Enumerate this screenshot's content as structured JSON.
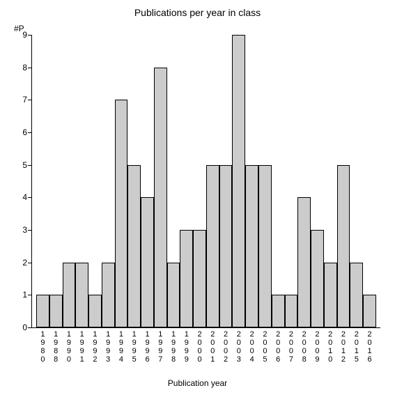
{
  "chart": {
    "type": "bar",
    "title": "Publications per year in class",
    "title_fontsize": 14,
    "y_axis_label": "#P",
    "x_axis_label": "Publication year",
    "label_fontsize": 12,
    "ylim": [
      0,
      9
    ],
    "ytick_step": 1,
    "bar_color": "#cccccc",
    "bar_border_color": "#000000",
    "background_color": "#ffffff",
    "axis_color": "#000000",
    "bar_width": 1.0,
    "categories": [
      "1980",
      "1988",
      "1990",
      "1991",
      "1992",
      "1993",
      "1994",
      "1995",
      "1996",
      "1997",
      "1998",
      "1999",
      "2000",
      "2001",
      "2002",
      "2003",
      "2004",
      "2005",
      "2006",
      "2007",
      "2008",
      "2009",
      "2010",
      "2012",
      "2015",
      "2016"
    ],
    "values": [
      1,
      1,
      2,
      2,
      1,
      2,
      7,
      5,
      4,
      8,
      2,
      3,
      3,
      5,
      5,
      9,
      5,
      5,
      1,
      1,
      4,
      3,
      2,
      5,
      2,
      1
    ]
  }
}
